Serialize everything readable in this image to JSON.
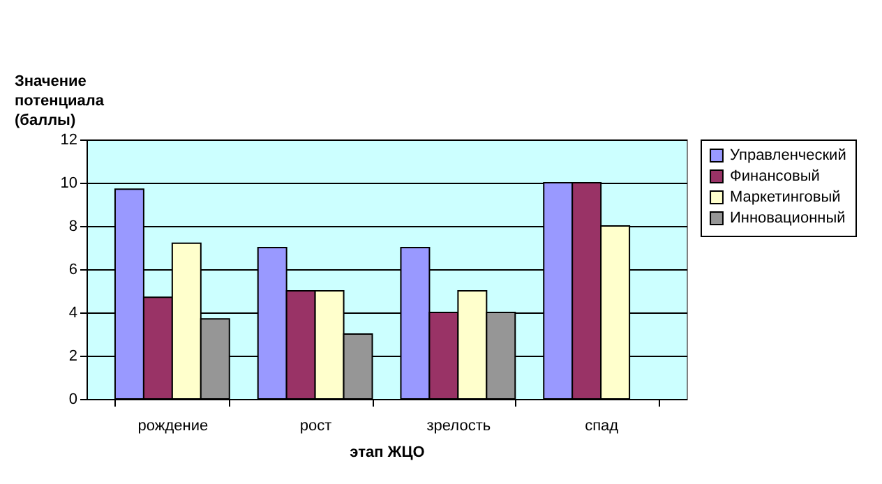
{
  "chart_data": {
    "type": "bar",
    "xlabel": "этап ЖЦО",
    "ylabel": "Значение\nпотенциала\n(баллы)",
    "categories": [
      "рождение",
      "рост",
      "зрелость",
      "спад"
    ],
    "series": [
      {
        "name": "Управленческий",
        "color": "#9999ff",
        "values": [
          9.7,
          7,
          7,
          10
        ]
      },
      {
        "name": "Финансовый",
        "color": "#993366",
        "values": [
          4.7,
          5,
          4,
          10
        ]
      },
      {
        "name": "Маркетинговый",
        "color": "#ffffcc",
        "values": [
          7.2,
          5,
          5,
          8
        ]
      },
      {
        "name": "Инновационный",
        "color": "#969696",
        "values": [
          3.7,
          3,
          4,
          null
        ]
      }
    ],
    "ylim": [
      0,
      12
    ],
    "yticks": [
      0,
      2,
      4,
      6,
      8,
      10,
      12
    ],
    "grid": "y",
    "legend": "right"
  }
}
